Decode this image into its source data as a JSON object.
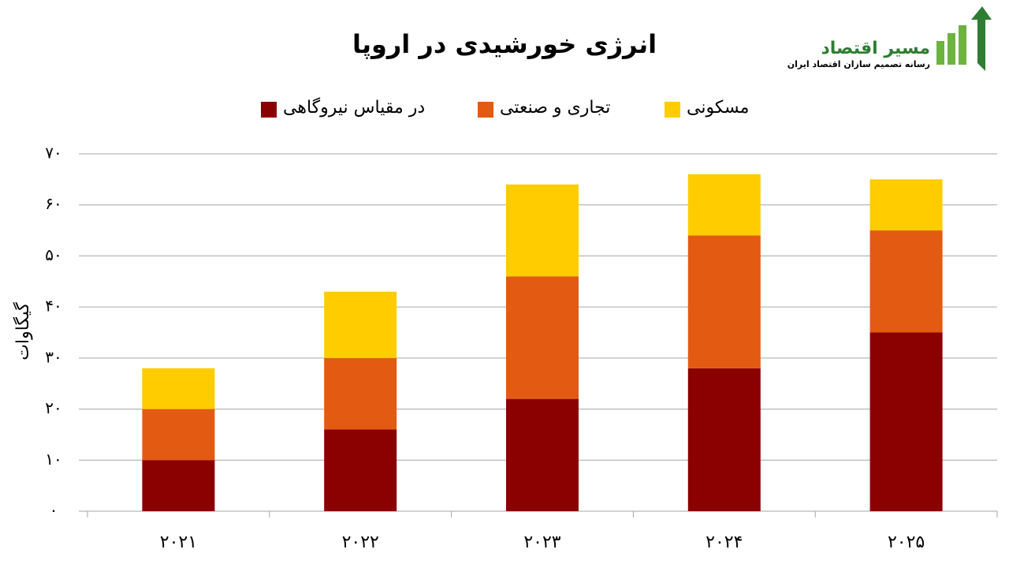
{
  "chart_data": {
    "type": "stacked_bar",
    "title": "انرژی خورشیدی در اروپا",
    "y_label": "گیگاوات",
    "logo": {
      "name": "مسیر اقتصاد",
      "tagline": "رسانه تصمیم سازان اقتصاد ایران"
    },
    "categories": [
      "۲۰۲۱",
      "۲۰۲۲",
      "۲۰۲۳",
      "۲۰۲۴",
      "۲۰۲۵"
    ],
    "series": [
      {
        "name": "در مقیاس نیروگاهی",
        "color": "#8b0000",
        "values": [
          10,
          16,
          22,
          28,
          35
        ]
      },
      {
        "name": "تجاری و صنعتی",
        "color": "#e35a12",
        "values": [
          10,
          14,
          24,
          26,
          20
        ]
      },
      {
        "name": "مسکونی",
        "color": "#ffcc00",
        "values": [
          8,
          13,
          18,
          12,
          10
        ]
      }
    ],
    "ylim": [
      0,
      70
    ],
    "yticks": [
      {
        "value": 0,
        "label": "۰"
      },
      {
        "value": 10,
        "label": "۱۰"
      },
      {
        "value": 20,
        "label": "۲۰"
      },
      {
        "value": 30,
        "label": "۳۰"
      },
      {
        "value": 40,
        "label": "۴۰"
      },
      {
        "value": 50,
        "label": "۵۰"
      },
      {
        "value": 60,
        "label": "۶۰"
      },
      {
        "value": 70,
        "label": "۷۰"
      }
    ],
    "grid": true
  }
}
